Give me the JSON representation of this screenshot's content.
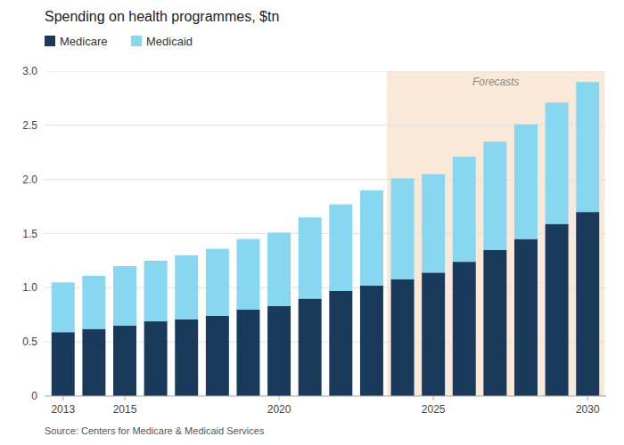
{
  "chart_data": {
    "type": "bar",
    "stacked": true,
    "title": "Spending on health programmes, $tn",
    "source": "Source: Centers for Medicare & Medicaid Services",
    "x": [
      2013,
      2014,
      2015,
      2016,
      2017,
      2018,
      2019,
      2020,
      2021,
      2022,
      2023,
      2024,
      2025,
      2026,
      2027,
      2028,
      2029,
      2030
    ],
    "series": [
      {
        "name": "Medicare",
        "color": "#1a3a5c",
        "values": [
          0.59,
          0.62,
          0.65,
          0.69,
          0.71,
          0.74,
          0.8,
          0.83,
          0.9,
          0.97,
          1.02,
          1.08,
          1.14,
          1.24,
          1.35,
          1.45,
          1.59,
          1.7
        ]
      },
      {
        "name": "Medicaid",
        "color": "#87d7f0",
        "values": [
          0.46,
          0.49,
          0.55,
          0.56,
          0.59,
          0.62,
          0.65,
          0.68,
          0.75,
          0.8,
          0.88,
          0.93,
          0.91,
          0.97,
          1.0,
          1.06,
          1.12,
          1.2
        ]
      }
    ],
    "xlim": [
      2012.4,
      2030.6
    ],
    "xticks": [
      2013,
      2015,
      2020,
      2025,
      2030
    ],
    "ylim": [
      0,
      3.0
    ],
    "yticks": [
      0,
      0.5,
      {
        "value": 1.0,
        "label": "1.0"
      },
      1.5,
      {
        "value": 2.0,
        "label": "2.0"
      },
      2.5,
      {
        "value": 3.0,
        "label": "3.0"
      }
    ],
    "grid": true,
    "legend": "upper left",
    "annotations": [
      {
        "text": "Forecasts",
        "x_start": 2023.5,
        "x_end": 2030.55,
        "color": "#fae8d8"
      }
    ]
  }
}
